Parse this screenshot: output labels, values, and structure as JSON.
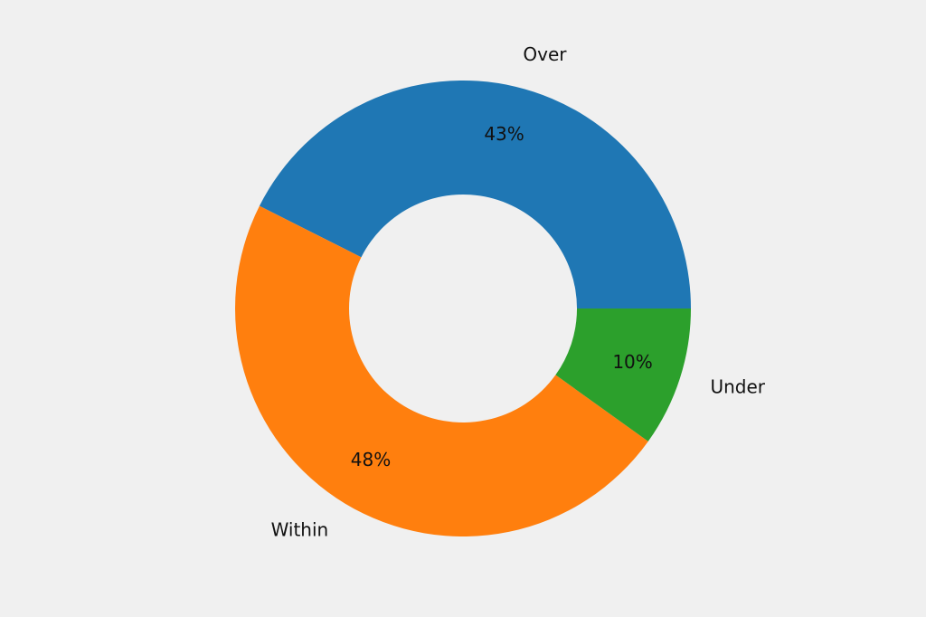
{
  "chart_data": {
    "type": "pie",
    "donut": true,
    "categories": [
      "Over",
      "Within",
      "Under"
    ],
    "values": [
      43,
      48,
      10
    ],
    "value_labels": [
      "43%",
      "48%",
      "10%"
    ],
    "colors": [
      "#1f77b4",
      "#ff7f0e",
      "#2ca02c"
    ]
  }
}
